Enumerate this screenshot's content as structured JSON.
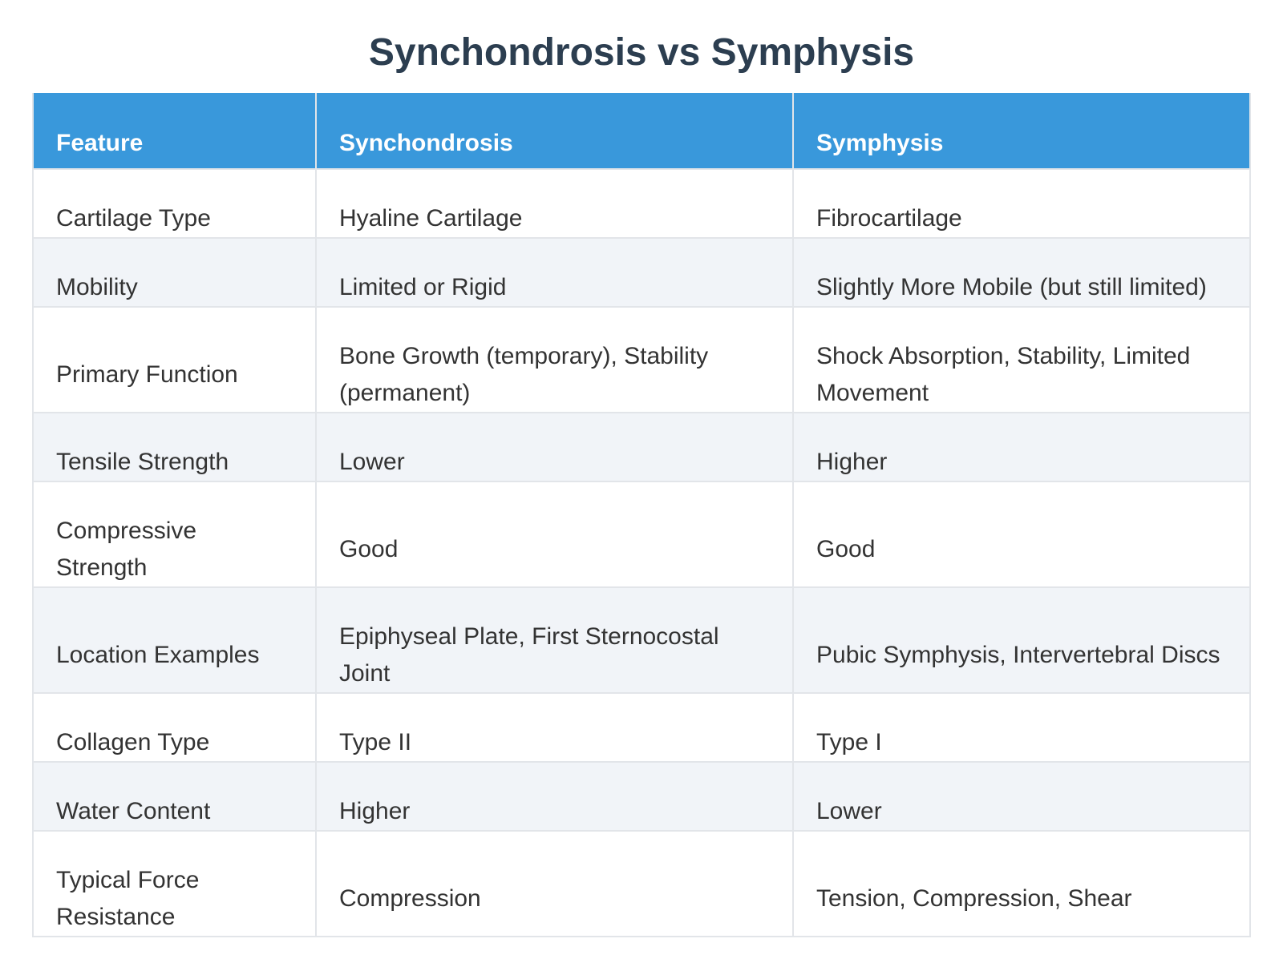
{
  "page": {
    "title": "Synchondrosis vs Symphysis"
  },
  "chart_data": {
    "type": "table",
    "title": "Synchondrosis vs Symphysis",
    "columns": [
      "Feature",
      "Synchondrosis",
      "Symphysis"
    ],
    "rows": [
      [
        "Cartilage Type",
        "Hyaline Cartilage",
        "Fibrocartilage"
      ],
      [
        "Mobility",
        "Limited or Rigid",
        "Slightly More Mobile (but still limited)"
      ],
      [
        "Primary Function",
        "Bone Growth (temporary), Stability (permanent)",
        "Shock Absorption, Stability, Limited Movement"
      ],
      [
        "Tensile Strength",
        "Lower",
        "Higher"
      ],
      [
        "Compressive Strength",
        "Good",
        "Good"
      ],
      [
        "Location Examples",
        "Epiphyseal Plate, First Sternocostal Joint",
        "Pubic Symphysis, Intervertebral Discs"
      ],
      [
        "Collagen Type",
        "Type II",
        "Type I"
      ],
      [
        "Water Content",
        "Higher",
        "Lower"
      ],
      [
        "Typical Force Resistance",
        "Compression",
        "Tension, Compression, Shear"
      ]
    ],
    "layout": {
      "header_position": "top",
      "zebra_striping": true,
      "striped_rows": "even"
    }
  },
  "colors": {
    "header_bg": "#3998db",
    "header_text": "#ffffff",
    "row_bg": "#ffffff",
    "row_alt_bg": "#f1f4f8",
    "border": "#e2e5e9",
    "title_text": "#2c3e50",
    "body_text": "#333333"
  }
}
